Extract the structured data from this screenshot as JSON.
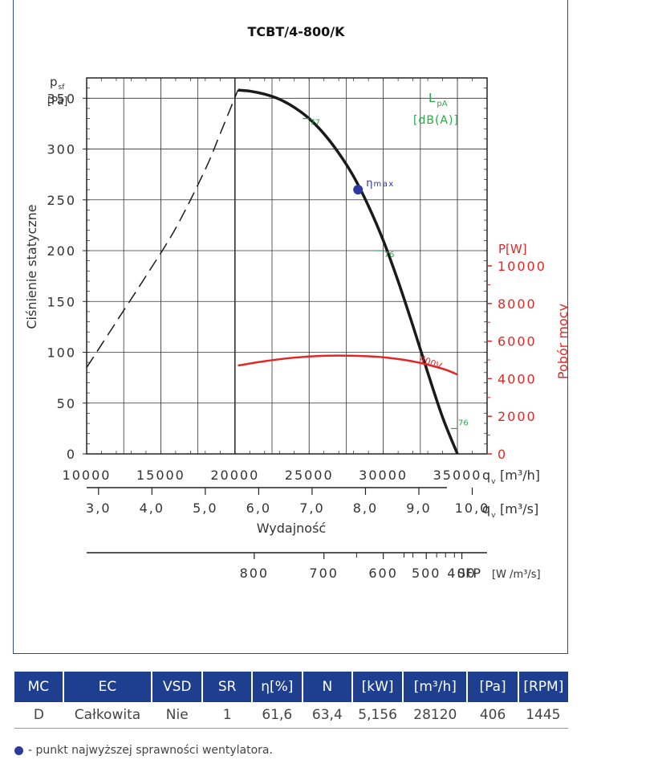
{
  "chart_data": {
    "type": "line",
    "title": "TCBT/4-800/K",
    "ylabel": "Ciśnienie statyczne",
    "y_symbol": "p",
    "y_symbol_sub": "sf",
    "y_unit": "[Pa]",
    "xlabel": "Wydajność",
    "x_symbol": "q",
    "x_symbol_sub": "v",
    "x_unit_m3h": "[m³/h]",
    "x_unit_m3s": "[m³/s]",
    "y2label": "Pobór mocy",
    "y2_unit": "P[W]",
    "noise_label": "L",
    "noise_label_sub": "pA",
    "noise_unit": "[dB(A)]",
    "sfp_label": "SFP",
    "sfp_unit": "[W /m³/s]",
    "xlim": [
      10000,
      37000
    ],
    "ylim": [
      0,
      370
    ],
    "y2lim": [
      0,
      10000
    ],
    "x_ticks": [
      10000,
      15000,
      20000,
      25000,
      30000,
      35000
    ],
    "x_tick_labels": [
      "10000",
      "15000",
      "20000",
      "25000",
      "30000",
      "35000"
    ],
    "y_ticks": [
      0,
      50,
      100,
      150,
      200,
      250,
      300,
      350
    ],
    "y_tick_labels": [
      "0",
      "50",
      "100",
      "150",
      "200",
      "250",
      "300",
      "350"
    ],
    "y2_ticks": [
      0,
      2000,
      4000,
      6000,
      8000,
      10000
    ],
    "y2_tick_labels": [
      "0",
      "2000",
      "4000",
      "6000",
      "8000",
      "10000"
    ],
    "m3s_ticks": [
      3,
      4,
      5,
      6,
      7,
      8,
      9,
      10
    ],
    "m3s_tick_labels": [
      "3,0",
      "4,0",
      "5,0",
      "6,0",
      "7,0",
      "8,0",
      "9,0",
      "10,0"
    ],
    "sfp_ticks": [
      800,
      700,
      600,
      500,
      400
    ],
    "sfp_tick_labels": [
      "800",
      "700",
      "600",
      "500",
      "400"
    ],
    "sfp_minor_ticks": [
      650,
      550,
      525,
      475,
      450,
      425
    ],
    "grid": true,
    "series": [
      {
        "kind": "pressure",
        "x": [
          20200,
          21000,
          22000,
          23000,
          24000,
          25000,
          26000,
          27000,
          28000,
          29000,
          30000,
          31000,
          32000,
          33000,
          34000,
          35000
        ],
        "y": [
          358,
          357,
          354,
          349,
          341,
          330,
          315,
          296,
          273,
          244,
          210,
          170,
          126,
          80,
          36,
          0
        ],
        "color": "#1a1a1a",
        "dash": false
      },
      {
        "kind": "stall",
        "x": [
          10000,
          12000,
          14000,
          16000,
          18000,
          19000,
          20200
        ],
        "y": [
          85,
          130,
          175,
          222,
          280,
          315,
          358
        ],
        "color": "#1a1a1a",
        "dash": true
      },
      {
        "kind": "power",
        "name": "400V",
        "x": [
          20200,
          22000,
          24000,
          26000,
          28000,
          30000,
          32000,
          34000,
          35000
        ],
        "y": [
          4700,
          4930,
          5120,
          5220,
          5220,
          5140,
          4920,
          4530,
          4220
        ],
        "color": "#e02828",
        "dash": false
      }
    ],
    "noise_points": [
      {
        "label": "77",
        "x": 25000,
        "y": 330
      },
      {
        "label": "76",
        "x": 30000,
        "y": 200
      },
      {
        "label": "76",
        "x": 35000,
        "y": 25
      }
    ],
    "max_eff_point": {
      "x": 28300,
      "y": 260,
      "label": "η",
      "label_sub": "max"
    },
    "power_label": "400V"
  },
  "table": {
    "headers": [
      "MC",
      "EC",
      "VSD",
      "SR",
      "η[%]",
      "N",
      "[kW]",
      "[m³/h]",
      "[Pa]",
      "[RPM]"
    ],
    "rows": [
      [
        "D",
        "Całkowita",
        "Nie",
        "1",
        "61,6",
        "63,4",
        "5,156",
        "28120",
        "406",
        "1445"
      ]
    ]
  },
  "legend_note": "- punkt najwyższej sprawności wentylatora.",
  "colors": {
    "accent": "#1e3f8f",
    "power": "#e02828",
    "noise": "#27a844",
    "point": "#2b3a9f"
  }
}
